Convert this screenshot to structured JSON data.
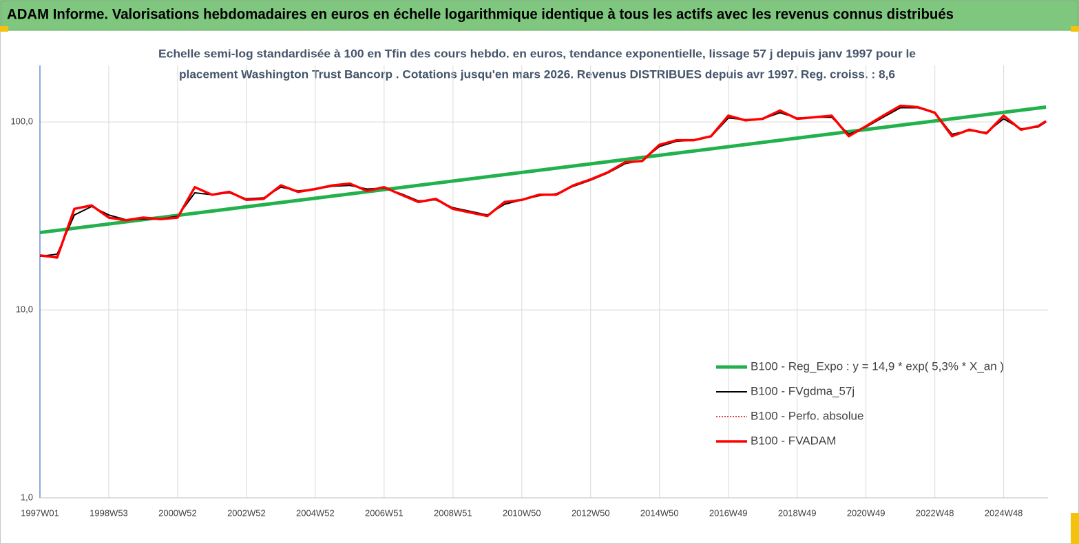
{
  "chart_data": {
    "type": "line",
    "title": "ADAM Informe. Valorisations hebdomadaires en euros en échelle logarithmique identique à tous les actifs avec les revenus connus distribués",
    "subtitle": [
      "Echelle semi-log standardisée à 100 en Tfin des cours hebdo. en euros, tendance exponentielle, lissage 57 j depuis janv 1997 pour le",
      "placement Washington Trust Bancorp . Cotations jusqu'en mars 2026. Revenus DISTRIBUES depuis avr 1997. Reg. croiss. : 8,6"
    ],
    "log_scale": true,
    "grid": true,
    "legend": "lower right",
    "xlim": [
      0,
      1523
    ],
    "xticks": [
      {
        "value": 0,
        "label": "1997W01"
      },
      {
        "value": 104,
        "label": "1998W53"
      },
      {
        "value": 208,
        "label": "2000W52"
      },
      {
        "value": 312,
        "label": "2002W52"
      },
      {
        "value": 416,
        "label": "2004W52"
      },
      {
        "value": 520,
        "label": "2006W51"
      },
      {
        "value": 624,
        "label": "2008W51"
      },
      {
        "value": 728,
        "label": "2010W50"
      },
      {
        "value": 832,
        "label": "2012W50"
      },
      {
        "value": 936,
        "label": "2014W50"
      },
      {
        "value": 1040,
        "label": "2016W49"
      },
      {
        "value": 1144,
        "label": "2018W49"
      },
      {
        "value": 1248,
        "label": "2020W49"
      },
      {
        "value": 1352,
        "label": "2022W48"
      },
      {
        "value": 1456,
        "label": "2024W48"
      }
    ],
    "ylim": [
      1,
      200
    ],
    "yticks": [
      {
        "value": 1,
        "label": "1,0"
      },
      {
        "value": 10,
        "label": "10,0"
      },
      {
        "value": 100,
        "label": "100,0"
      }
    ],
    "series": [
      {
        "name": "B100 - Reg_Expo : y = 14,9 *  exp( 5,3% *   X_an )",
        "color": "#22b14c",
        "width": 5,
        "dash": null,
        "x": [
          0,
          1520
        ],
        "values": [
          25.8,
          120
        ]
      },
      {
        "name": "B100 - FVgdma_57j",
        "color": "#000000",
        "width": 2,
        "dash": null,
        "x": [
          0,
          26,
          52,
          78,
          104,
          130,
          156,
          182,
          208,
          234,
          260,
          286,
          312,
          338,
          364,
          390,
          416,
          442,
          468,
          494,
          520,
          546,
          572,
          598,
          624,
          650,
          676,
          702,
          728,
          754,
          780,
          806,
          832,
          858,
          884,
          910,
          936,
          962,
          988,
          1014,
          1040,
          1066,
          1092,
          1118,
          1144,
          1170,
          1196,
          1222,
          1248,
          1274,
          1300,
          1326,
          1352,
          1378,
          1404,
          1430,
          1456,
          1482,
          1508,
          1520
        ],
        "values": [
          19.3,
          19.8,
          32,
          35.5,
          32,
          30.2,
          30.5,
          30.5,
          31.5,
          42,
          41,
          42,
          39,
          39.5,
          45,
          43,
          44,
          45.5,
          46,
          44,
          44.5,
          41.5,
          38,
          38.5,
          35,
          33.5,
          32,
          36.5,
          38.5,
          40.5,
          41.5,
          45.5,
          49,
          53.5,
          60,
          62.5,
          74,
          79,
          80,
          83.5,
          105,
          103,
          104,
          112,
          105,
          106,
          106,
          86,
          94,
          106,
          119,
          119,
          112,
          86,
          90,
          88,
          104,
          92,
          94,
          100
        ]
      },
      {
        "name": "B100 - Perfo. absolue",
        "color": "#e00000",
        "width": 1.5,
        "dash": "2 2",
        "x": [
          0,
          26,
          52,
          78,
          104,
          130,
          156,
          182,
          208,
          234,
          260,
          286,
          312,
          338,
          364,
          390,
          416,
          442,
          468,
          494,
          520,
          546,
          572,
          598,
          624,
          650,
          676,
          702,
          728,
          754,
          780,
          806,
          832,
          858,
          884,
          910,
          936,
          962,
          988,
          1014,
          1040,
          1066,
          1092,
          1118,
          1144,
          1170,
          1196,
          1222,
          1248,
          1274,
          1300,
          1326,
          1352,
          1378,
          1404,
          1430,
          1456,
          1482,
          1508,
          1520
        ],
        "values": [
          19.5,
          19,
          34.5,
          36,
          31,
          30,
          31,
          30.4,
          31,
          45,
          41,
          42.5,
          38.5,
          39,
          46,
          42.5,
          44,
          46,
          47,
          43,
          45,
          41,
          37.5,
          39,
          34.5,
          33,
          31.6,
          37.5,
          38.5,
          41,
          41,
          46,
          49.5,
          54,
          61,
          62,
          75.6,
          80,
          80,
          84,
          108,
          102,
          104,
          115,
          104,
          106,
          108,
          84,
          95,
          108,
          122,
          120,
          112,
          84,
          91,
          87,
          108,
          91,
          95,
          101
        ]
      },
      {
        "name": "B100 - FVADAM",
        "color": "#ff0000",
        "width": 3.5,
        "dash": null,
        "x": [
          0,
          26,
          52,
          78,
          104,
          130,
          156,
          182,
          208,
          234,
          260,
          286,
          312,
          338,
          364,
          390,
          416,
          442,
          468,
          494,
          520,
          546,
          572,
          598,
          624,
          650,
          676,
          702,
          728,
          754,
          780,
          806,
          832,
          858,
          884,
          910,
          936,
          962,
          988,
          1014,
          1040,
          1066,
          1092,
          1118,
          1144,
          1170,
          1196,
          1222,
          1248,
          1274,
          1300,
          1326,
          1352,
          1378,
          1404,
          1430,
          1456,
          1482,
          1508,
          1520
        ],
        "values": [
          19.5,
          19,
          34.5,
          36,
          31,
          30,
          31,
          30.4,
          31,
          45,
          41,
          42.5,
          38.5,
          39,
          46,
          42.5,
          44,
          46,
          47,
          43,
          45,
          41,
          37.5,
          39,
          34.5,
          33,
          31.6,
          37.5,
          38.5,
          41,
          41,
          46,
          49.5,
          54,
          61,
          62,
          75.6,
          80,
          80,
          84,
          108,
          102,
          104,
          115,
          104,
          106,
          108,
          84,
          95,
          108,
          122,
          120,
          112,
          84,
          91,
          87,
          108,
          91,
          95,
          101
        ]
      }
    ]
  }
}
